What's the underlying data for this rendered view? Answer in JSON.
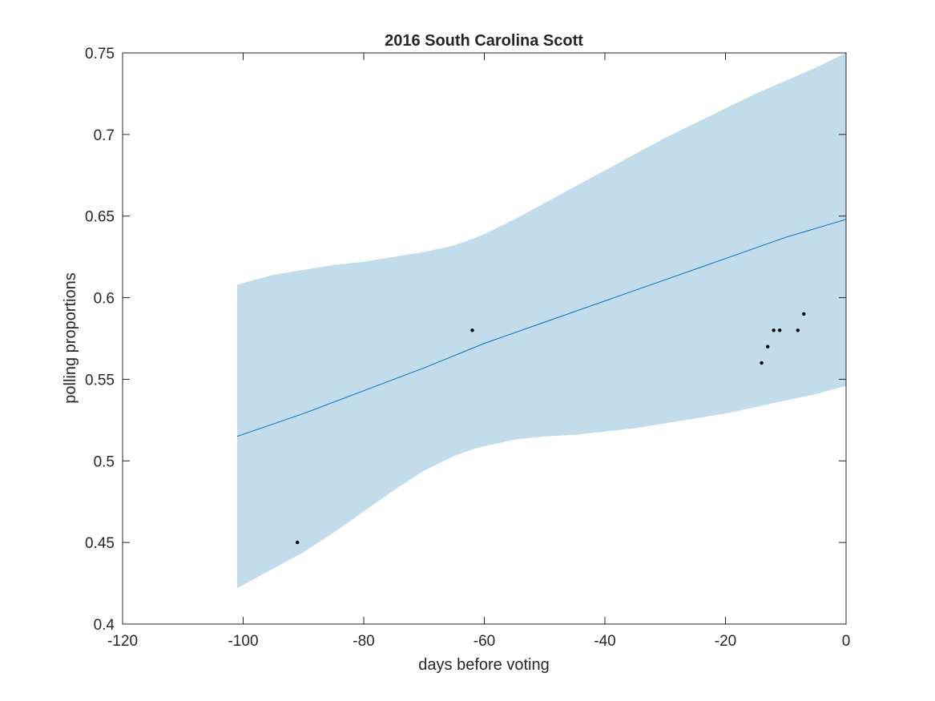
{
  "chart_data": {
    "type": "line",
    "title": "2016 South Carolina Scott",
    "xlabel": "days before voting",
    "ylabel": "polling proportions",
    "xlim": [
      -120,
      0
    ],
    "ylim": [
      0.4,
      0.75
    ],
    "xticks": [
      -120,
      -100,
      -80,
      -60,
      -40,
      -20,
      0
    ],
    "yticks": [
      0.4,
      0.45,
      0.5,
      0.55,
      0.6,
      0.65,
      0.7,
      0.75
    ],
    "xtick_labels": [
      "-120",
      "-100",
      "-80",
      "-60",
      "-40",
      "-20",
      "0"
    ],
    "ytick_labels": [
      "0.4",
      "0.45",
      "0.5",
      "0.55",
      "0.6",
      "0.65",
      "0.7",
      "0.75"
    ],
    "grid": false,
    "legend": "none",
    "colors": {
      "band": "#c2dceb",
      "line": "#0072bd",
      "points": "#000000",
      "axes": "#262626"
    },
    "series": [
      {
        "type": "area-band",
        "x": [
          -101,
          -95,
          -90,
          -85,
          -80,
          -75,
          -70,
          -65,
          -62,
          -60,
          -55,
          -50,
          -45,
          -40,
          -35,
          -30,
          -25,
          -20,
          -15,
          -10,
          -5,
          0
        ],
        "upper": [
          0.608,
          0.614,
          0.617,
          0.62,
          0.622,
          0.625,
          0.628,
          0.632,
          0.636,
          0.639,
          0.648,
          0.658,
          0.668,
          0.678,
          0.688,
          0.698,
          0.707,
          0.716,
          0.725,
          0.733,
          0.741,
          0.75
        ],
        "lower": [
          0.422,
          0.434,
          0.444,
          0.456,
          0.469,
          0.482,
          0.494,
          0.503,
          0.507,
          0.509,
          0.513,
          0.515,
          0.516,
          0.518,
          0.52,
          0.523,
          0.526,
          0.529,
          0.533,
          0.537,
          0.541,
          0.546
        ]
      },
      {
        "type": "line",
        "x": [
          -101,
          -90,
          -80,
          -70,
          -60,
          -50,
          -40,
          -30,
          -20,
          -10,
          0
        ],
        "y": [
          0.515,
          0.529,
          0.543,
          0.557,
          0.572,
          0.585,
          0.598,
          0.611,
          0.624,
          0.637,
          0.648
        ]
      },
      {
        "type": "scatter",
        "x": [
          -91,
          -62,
          -14,
          -13,
          -12,
          -11,
          -8,
          -7
        ],
        "y": [
          0.45,
          0.58,
          0.56,
          0.57,
          0.58,
          0.58,
          0.58,
          0.59
        ]
      }
    ]
  }
}
